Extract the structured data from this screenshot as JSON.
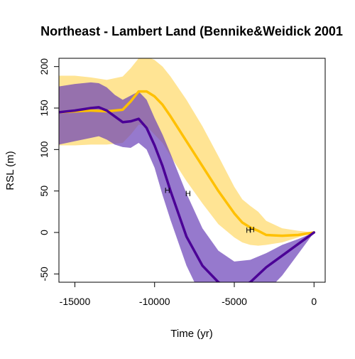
{
  "chart_data": {
    "type": "line",
    "title": "Northeast - Lambert Land (Bennike&Weidick 2001",
    "xlabel": "Time (yr)",
    "ylabel": "RSL (m)",
    "xlim": [
      -16000,
      700
    ],
    "ylim": [
      -60,
      210
    ],
    "xticks": [
      -15000,
      -10000,
      -5000,
      0
    ],
    "xtick_labels": [
      "-15000",
      "-10000",
      "-5000",
      "0"
    ],
    "yticks": [
      -50,
      0,
      50,
      100,
      150,
      200
    ],
    "ytick_labels": [
      "-50",
      "0",
      "50",
      "100",
      "150",
      "200"
    ],
    "grid": false,
    "legend": "none",
    "series": [
      {
        "color": "#FFC000",
        "band_color": "#FFD966",
        "x": [
          -16000,
          -15000,
          -14000,
          -13000,
          -12000,
          -11500,
          -11000,
          -10500,
          -10000,
          -9500,
          -9000,
          -8000,
          -7000,
          -6000,
          -5000,
          -4500,
          -4000,
          -3500,
          -3000,
          -2000,
          -1000,
          0
        ],
        "y": [
          145,
          146,
          147,
          146,
          148,
          158,
          170,
          170,
          164,
          154,
          140,
          110,
          80,
          50,
          23,
          12,
          6,
          2,
          -3,
          -4,
          -3,
          0
        ],
        "lower": [
          105,
          105,
          106,
          106,
          108,
          118,
          130,
          128,
          118,
          108,
          92,
          62,
          35,
          10,
          -6,
          -12,
          -15,
          -16,
          -15,
          -12,
          -6,
          0
        ],
        "upper": [
          189,
          189,
          187,
          184,
          188,
          198,
          210,
          212,
          208,
          200,
          188,
          160,
          128,
          92,
          55,
          40,
          32,
          25,
          14,
          5,
          2,
          0
        ]
      },
      {
        "color": "#4B0096",
        "band_color": "#6A40B8",
        "x": [
          -16000,
          -15000,
          -14000,
          -13500,
          -13000,
          -12500,
          -12000,
          -11500,
          -11000,
          -10500,
          -10000,
          -9500,
          -9000,
          -8000,
          -7000,
          -6000,
          -5000,
          -4000,
          -3000,
          -2000,
          -1000,
          0
        ],
        "y": [
          145,
          147,
          150,
          151,
          147,
          140,
          133,
          134,
          137,
          126,
          105,
          80,
          50,
          -5,
          -40,
          -60,
          -70,
          -60,
          -42,
          -28,
          -14,
          0
        ],
        "lower": [
          106,
          110,
          114,
          116,
          112,
          106,
          103,
          102,
          108,
          100,
          78,
          45,
          15,
          -40,
          -80,
          -98,
          -102,
          -92,
          -72,
          -52,
          -26,
          0
        ],
        "upper": [
          176,
          179,
          181,
          180,
          175,
          166,
          160,
          165,
          170,
          160,
          138,
          118,
          95,
          47,
          5,
          -22,
          -35,
          -33,
          -25,
          -15,
          -8,
          0
        ]
      }
    ],
    "observations": [
      {
        "x": -9200,
        "y": 51,
        "label": "H"
      },
      {
        "x": -7900,
        "y": 47,
        "label": "H"
      },
      {
        "x": -4100,
        "y": 3,
        "label": "H"
      },
      {
        "x": -3900,
        "y": 4,
        "label": "H"
      }
    ]
  }
}
